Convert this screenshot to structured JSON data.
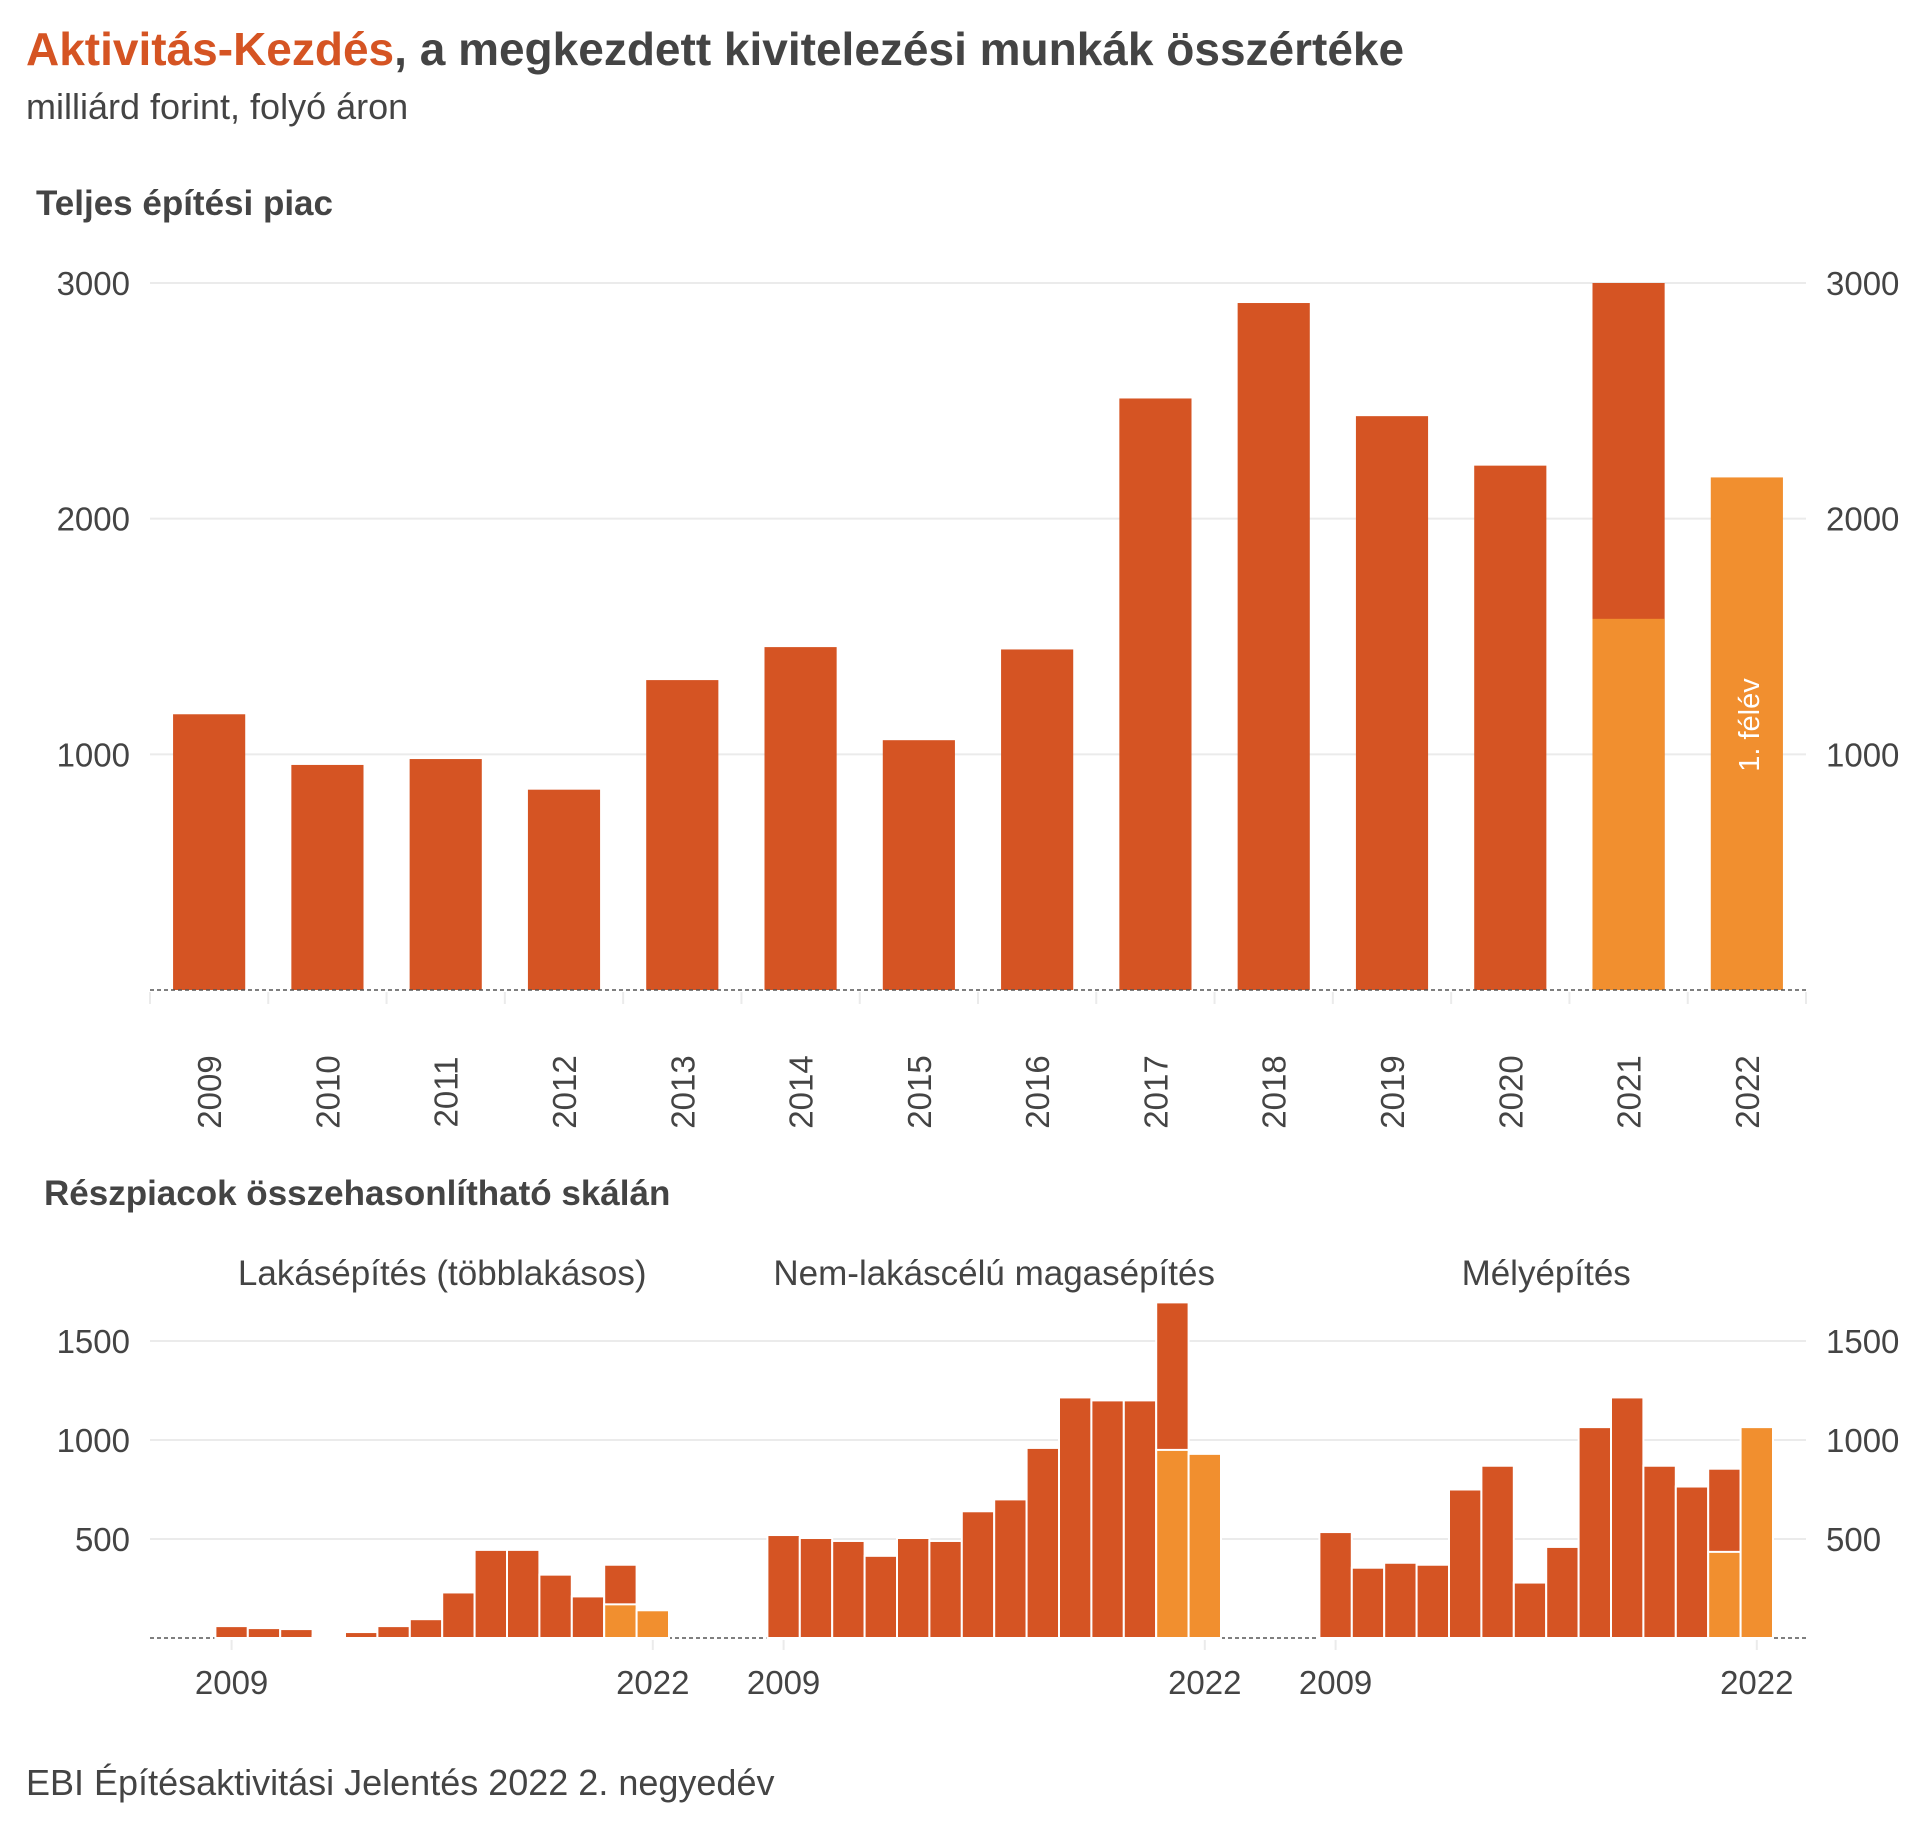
{
  "header": {
    "title_accent": "Aktivitás-Kezdés",
    "title_rest": ", a megkezdett kivitelezési munkák összértéke",
    "subtitle": "milliárd forint, folyó áron"
  },
  "colors": {
    "dark": "#D55423",
    "light": "#F18F2F",
    "text": "#444444",
    "grid": "#EBEBEB"
  },
  "chart_data": [
    {
      "type": "bar",
      "title": "Teljes építési piac",
      "categories": [
        "2009",
        "2010",
        "2011",
        "2012",
        "2013",
        "2014",
        "2015",
        "2016",
        "2017",
        "2018",
        "2019",
        "2020",
        "2021",
        "2022"
      ],
      "series": [
        {
          "values": [
            1170,
            955,
            980,
            850,
            1315,
            1455,
            1060,
            1445,
            2510,
            2915,
            2435,
            2225,
            3000,
            0
          ]
        },
        {
          "values": [
            0,
            0,
            0,
            0,
            0,
            0,
            0,
            0,
            0,
            0,
            0,
            0,
            1575,
            2175
          ]
        }
      ],
      "yticks": [
        1000,
        2000,
        3000
      ],
      "ylim": [
        0,
        3050
      ],
      "annotation": "1. félév",
      "grid": true
    },
    {
      "type": "bar",
      "title": "Részpiacok összehasonlítható skálán",
      "ylim": [
        0,
        1700
      ],
      "yticks": [
        500,
        1000,
        1500
      ],
      "grid": true,
      "panels": [
        {
          "title": "Lakásépítés (többlakásos)",
          "x_labels": [
            "2009",
            "2022"
          ],
          "years": [
            "2009",
            "2010",
            "2011",
            "2012",
            "2013",
            "2014",
            "2015",
            "2016",
            "2017",
            "2018",
            "2019",
            "2020",
            "2021",
            "2022"
          ],
          "full": [
            60,
            50,
            45,
            10,
            30,
            60,
            95,
            230,
            445,
            445,
            320,
            210,
            370,
            0
          ],
          "half": [
            0,
            0,
            0,
            0,
            0,
            0,
            0,
            0,
            0,
            0,
            0,
            0,
            170,
            140
          ]
        },
        {
          "title": "Nem-lakáscélú magasépítés",
          "x_labels": [
            "2009",
            "2022"
          ],
          "years": [
            "2009",
            "2010",
            "2011",
            "2012",
            "2013",
            "2014",
            "2015",
            "2016",
            "2017",
            "2018",
            "2019",
            "2020",
            "2021",
            "2022"
          ],
          "full": [
            520,
            505,
            490,
            415,
            505,
            490,
            640,
            700,
            960,
            1215,
            1200,
            1200,
            1695,
            0
          ],
          "half": [
            0,
            0,
            0,
            0,
            0,
            0,
            0,
            0,
            0,
            0,
            0,
            0,
            950,
            930
          ]
        },
        {
          "title": "Mélyépítés",
          "x_labels": [
            "2009",
            "2022"
          ],
          "years": [
            "2009",
            "2010",
            "2011",
            "2012",
            "2013",
            "2014",
            "2015",
            "2016",
            "2017",
            "2018",
            "2019",
            "2020",
            "2021",
            "2022"
          ],
          "full": [
            535,
            355,
            380,
            370,
            750,
            870,
            280,
            460,
            1065,
            1215,
            870,
            765,
            855,
            0
          ],
          "half": [
            0,
            0,
            0,
            0,
            0,
            0,
            0,
            0,
            0,
            0,
            0,
            0,
            435,
            1065
          ]
        }
      ]
    }
  ],
  "source": "EBI Építésaktivitási Jelentés 2022 2. negyedév"
}
